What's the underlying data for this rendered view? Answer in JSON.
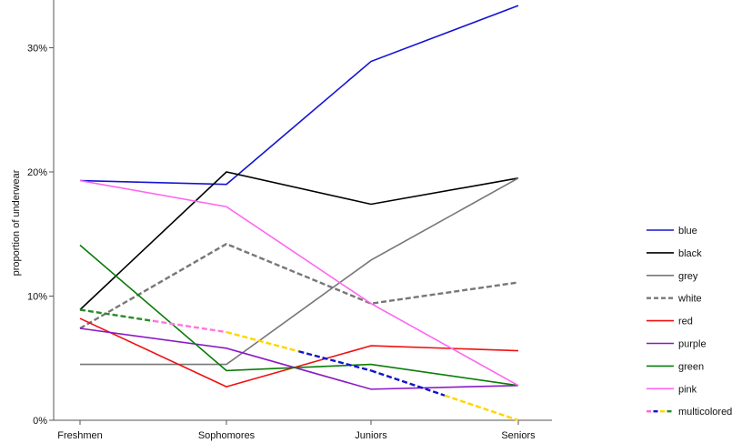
{
  "chart_data": {
    "type": "line",
    "title": "",
    "xlabel": "",
    "ylabel": "proportion of underwear",
    "categories": [
      "Freshmen",
      "Sophomores",
      "Juniors",
      "Seniors"
    ],
    "y_ticks": [
      0,
      10,
      20,
      30
    ],
    "y_tick_labels": [
      "0%",
      "10%",
      "20%",
      "30%"
    ],
    "ylim": [
      0,
      33.5
    ],
    "grid": false,
    "legend_position": "right",
    "series": [
      {
        "name": "blue",
        "values": [
          19.3,
          19.0,
          28.9,
          33.4
        ],
        "color": "#1414d2",
        "style": "solid"
      },
      {
        "name": "black",
        "values": [
          8.9,
          20.0,
          17.4,
          19.5
        ],
        "color": "#000000",
        "style": "solid"
      },
      {
        "name": "grey",
        "values": [
          4.5,
          4.5,
          12.9,
          19.5
        ],
        "color": "#777777",
        "style": "solid"
      },
      {
        "name": "white",
        "values": [
          7.4,
          14.2,
          9.4,
          11.1
        ],
        "color": "#777777",
        "style": "dashed"
      },
      {
        "name": "red",
        "values": [
          8.2,
          2.7,
          6.0,
          5.6
        ],
        "color": "#ee1111",
        "style": "solid"
      },
      {
        "name": "purple",
        "values": [
          7.4,
          5.8,
          2.5,
          2.8
        ],
        "color": "#8a19c6",
        "style": "solid"
      },
      {
        "name": "green",
        "values": [
          14.1,
          4.0,
          4.5,
          2.8
        ],
        "color": "#0a7d0a",
        "style": "solid"
      },
      {
        "name": "pink",
        "values": [
          19.3,
          17.2,
          9.4,
          2.8
        ],
        "color": "#ff66ee",
        "style": "solid"
      },
      {
        "name": "multicolored",
        "values": [
          8.9,
          7.1,
          4.0,
          0.0
        ],
        "color": "multi",
        "style": "dashed",
        "segment_colors": [
          [
            "#2a8a2a",
            "#ff77dd"
          ],
          [
            "#ffd400",
            "#1414c8"
          ],
          [
            "#1414c8",
            "#ffd400"
          ],
          [
            "#ff77dd",
            "#2a8a2a"
          ]
        ]
      }
    ]
  }
}
